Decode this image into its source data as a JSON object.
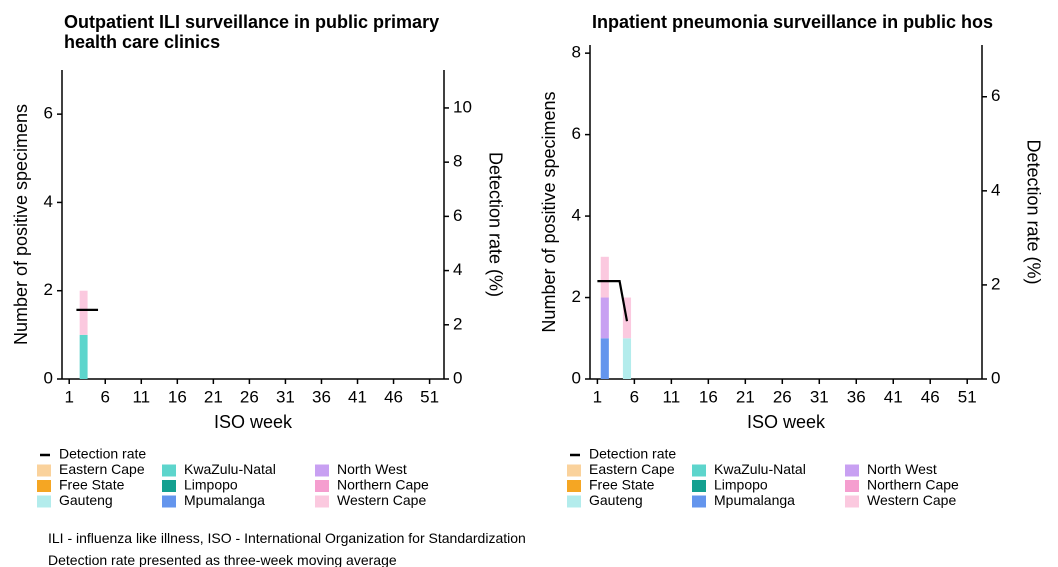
{
  "chart_data": [
    {
      "type": "bar",
      "stacked": true,
      "title": "Outpatient ILI surveillance in public primary health care clinics",
      "x_label": "ISO week",
      "y_label": "Number of positive specimens",
      "y2_label": "Detection rate (%)",
      "xlim": [
        0,
        53
      ],
      "xticks": [
        1,
        6,
        11,
        16,
        21,
        26,
        31,
        36,
        41,
        46,
        51
      ],
      "ylim": [
        0,
        7
      ],
      "yticks": [
        0,
        2,
        4,
        6
      ],
      "y2lim": [
        0,
        11.4
      ],
      "y2ticks": [
        0,
        2,
        4,
        6,
        8,
        10
      ],
      "series": [
        {
          "name": "Detection rate",
          "type": "line",
          "axis": "y2",
          "color": "#000000",
          "x": [
            2,
            3,
            4,
            5
          ],
          "values": [
            2.55,
            2.55,
            2.55,
            2.55
          ]
        },
        {
          "name": "Eastern Cape",
          "color": "#fad29c",
          "x": [],
          "values": []
        },
        {
          "name": "Free State",
          "color": "#f5a623",
          "x": [],
          "values": []
        },
        {
          "name": "Gauteng",
          "color": "#b3ecec",
          "x": [],
          "values": []
        },
        {
          "name": "KwaZulu-Natal",
          "color": "#5dd5cc",
          "x": [
            3
          ],
          "values": [
            1
          ]
        },
        {
          "name": "Limpopo",
          "color": "#14a090",
          "x": [],
          "values": []
        },
        {
          "name": "Mpumalanga",
          "color": "#6495ed",
          "x": [],
          "values": []
        },
        {
          "name": "North West",
          "color": "#c8a0f2",
          "x": [],
          "values": []
        },
        {
          "name": "Northern Cape",
          "color": "#f59ecf",
          "x": [],
          "values": []
        },
        {
          "name": "Western Cape",
          "color": "#fbc9df",
          "x": [
            3
          ],
          "values": [
            1
          ]
        }
      ]
    },
    {
      "type": "bar",
      "stacked": true,
      "title": "Inpatient pneumonia surveillance in public hos",
      "x_label": "ISO week",
      "y_label": "Number of positive specimens",
      "y2_label": "Detection rate (%)",
      "xlim": [
        0,
        53
      ],
      "xticks": [
        1,
        6,
        11,
        16,
        21,
        26,
        31,
        36,
        41,
        46,
        51
      ],
      "ylim": [
        0,
        8.2
      ],
      "yticks": [
        0,
        2,
        4,
        6,
        8
      ],
      "y2lim": [
        0,
        7.1
      ],
      "y2ticks": [
        0,
        2,
        4,
        6
      ],
      "series": [
        {
          "name": "Detection rate",
          "type": "line",
          "axis": "y2",
          "color": "#000000",
          "x": [
            1,
            2,
            3,
            4,
            5
          ],
          "values": [
            2.08,
            2.08,
            2.08,
            2.08,
            1.23
          ]
        },
        {
          "name": "Eastern Cape",
          "color": "#fad29c",
          "x": [],
          "values": []
        },
        {
          "name": "Free State",
          "color": "#f5a623",
          "x": [],
          "values": []
        },
        {
          "name": "Gauteng",
          "color": "#b3ecec",
          "x": [
            5
          ],
          "values": [
            1
          ]
        },
        {
          "name": "KwaZulu-Natal",
          "color": "#5dd5cc",
          "x": [],
          "values": []
        },
        {
          "name": "Limpopo",
          "color": "#14a090",
          "x": [],
          "values": []
        },
        {
          "name": "Mpumalanga",
          "color": "#6495ed",
          "x": [
            2
          ],
          "values": [
            1
          ]
        },
        {
          "name": "North West",
          "color": "#c8a0f2",
          "x": [
            2
          ],
          "values": [
            1
          ]
        },
        {
          "name": "Northern Cape",
          "color": "#f59ecf",
          "x": [],
          "values": []
        },
        {
          "name": "Western Cape",
          "color": "#fbc9df",
          "x": [
            2,
            5
          ],
          "values": [
            1,
            1
          ]
        }
      ]
    }
  ],
  "notes": [
    "ILI - influenza like illness, ISO - International Organization for Standardization",
    "Detection rate presented as three-week moving average"
  ]
}
